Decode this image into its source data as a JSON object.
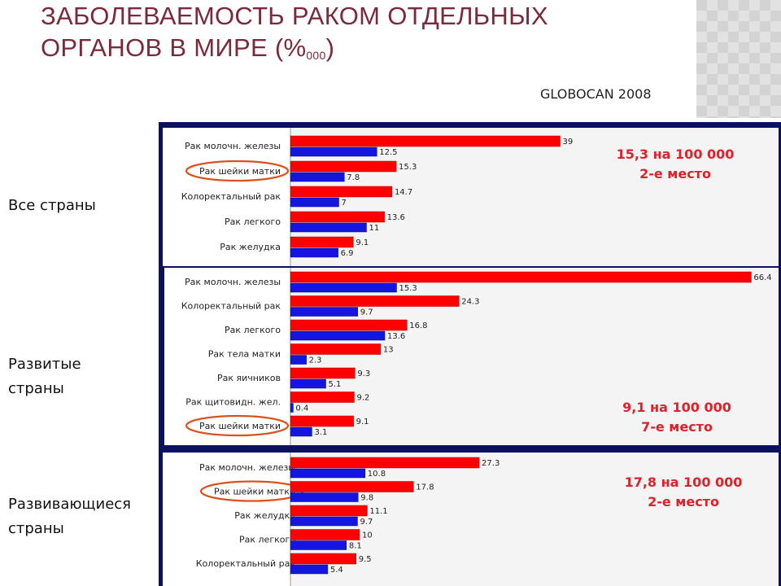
{
  "slide": {
    "title_main": "ЗАБОЛЕВАЕМОСТЬ РАКОМ ОТДЕЛЬНЫХ ОРГАНОВ В МИРЕ (%",
    "title_subscript": "000",
    "title_close": ")",
    "source": "GLOBOCAN 2008",
    "group_labels": [
      "Все страны",
      "Развитые страны",
      "Развивающиеся страны"
    ]
  },
  "colors": {
    "red_series": "#ff0000",
    "blue_series": "#1515e0",
    "highlight": "#d9531e",
    "annotation": "#e0202a",
    "frame": "#0a1160",
    "title": "#7a2a3a"
  },
  "chart_data": [
    {
      "type": "bar",
      "orientation": "horizontal",
      "group": "Все страны",
      "categories": [
        "Рак молочн. железы",
        "Рак шейки матки",
        "Колоректальный рак",
        "Рак легкого",
        "Рак желудка"
      ],
      "series": [
        {
          "values": [
            39,
            15.3,
            14.7,
            13.6,
            9.1
          ]
        },
        {
          "values": [
            12.5,
            7.8,
            7,
            11,
            6.9
          ]
        }
      ],
      "value_labels": [
        [
          "39",
          "15.3",
          "14.7",
          "13.6",
          "9.1"
        ],
        [
          "12.5",
          "7.8",
          "7",
          "11",
          "6.9"
        ]
      ],
      "highlighted_category": "Рак шейки матки",
      "annotation": [
        "15,3 на 100 000",
        "2-е место"
      ]
    },
    {
      "type": "bar",
      "orientation": "horizontal",
      "group": "Развитые страны",
      "categories": [
        "Рак молочн. железы",
        "Колоректальный рак",
        "Рак легкого",
        "Рак тела матки",
        "Рак яичников",
        "Рак щитовидн. жел.",
        "Рак шейки матки"
      ],
      "series": [
        {
          "values": [
            66.4,
            24.3,
            16.8,
            13,
            9.3,
            9.2,
            9.1
          ]
        },
        {
          "values": [
            15.3,
            9.7,
            13.6,
            2.3,
            5.1,
            0.4,
            3.1
          ]
        }
      ],
      "value_labels": [
        [
          "66.4",
          "24.3",
          "16.8",
          "13",
          "9.3",
          "9.2",
          "9.1"
        ],
        [
          "15.3",
          "9.7",
          "13.6",
          "2.3",
          "5.1",
          "0.4",
          "3.1"
        ]
      ],
      "highlighted_category": "Рак шейки матки",
      "annotation": [
        "9,1 на 100 000",
        "7-е место"
      ]
    },
    {
      "type": "bar",
      "orientation": "horizontal",
      "group": "Развивающиеся страны",
      "categories": [
        "Рак молочн. железы",
        "Рак шейки матки",
        "Рак желудка",
        "Рак легкого",
        "Колоректальный рак"
      ],
      "series": [
        {
          "values": [
            27.3,
            17.8,
            11.1,
            10,
            9.5
          ]
        },
        {
          "values": [
            10.8,
            9.8,
            9.7,
            8.1,
            5.4
          ]
        }
      ],
      "value_labels": [
        [
          "27.3",
          "17.8",
          "11.1",
          "10",
          "9.5"
        ],
        [
          "10.8",
          "9.8",
          "9.7",
          "8.1",
          "5.4"
        ]
      ],
      "highlighted_category": "Рак шейки матки",
      "annotation": [
        "17,8 на 100 000",
        "2-е место"
      ]
    }
  ]
}
